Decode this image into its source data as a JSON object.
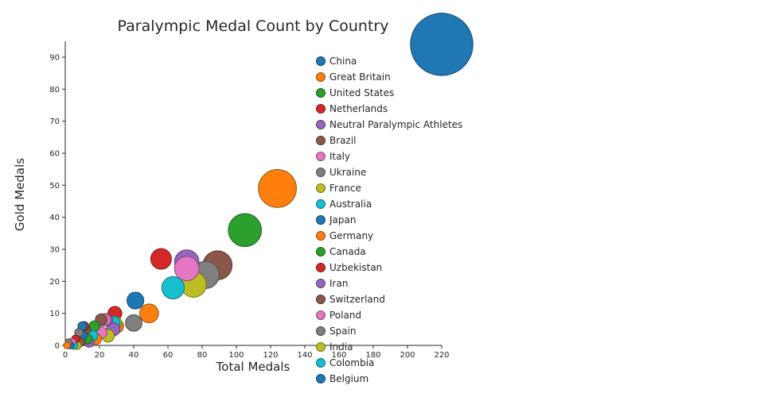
{
  "title": "Paralympic Medal Count by Country",
  "chart_data": {
    "type": "scatter",
    "subtype": "bubble",
    "title": "Paralympic Medal Count by Country",
    "x_label": "Total Medals",
    "y_label": "Gold Medals",
    "x_range": [
      0,
      220
    ],
    "y_range": [
      0,
      90
    ],
    "x_ticks": [
      0,
      20,
      40,
      60,
      80,
      100,
      120,
      140,
      160,
      180,
      200,
      220
    ],
    "y_ticks": [
      0,
      10,
      20,
      30,
      40,
      50,
      60,
      70,
      80,
      90
    ],
    "grid": false,
    "legend_position": "right-inside",
    "bubble_size": "proportional to total medals",
    "background_color": "#ffffff",
    "text_color": "#262626",
    "palette": [
      "#1f77b4",
      "#ff7f0e",
      "#2ca02c",
      "#d62728",
      "#9467bd",
      "#8c564b",
      "#e377c2",
      "#7f7f7f",
      "#bcbd22",
      "#17becf"
    ],
    "series": [
      {
        "name": "China",
        "total": 220,
        "gold": 94,
        "color": "#1f77b4"
      },
      {
        "name": "Great Britain",
        "total": 124,
        "gold": 49,
        "color": "#ff7f0e"
      },
      {
        "name": "United States",
        "total": 105,
        "gold": 36,
        "color": "#2ca02c"
      },
      {
        "name": "Netherlands",
        "total": 56,
        "gold": 27,
        "color": "#d62728"
      },
      {
        "name": "Neutral Paralympic Athletes",
        "total": 71,
        "gold": 26,
        "color": "#9467bd"
      },
      {
        "name": "Brazil",
        "total": 89,
        "gold": 25,
        "color": "#8c564b"
      },
      {
        "name": "Italy",
        "total": 71,
        "gold": 24,
        "color": "#e377c2"
      },
      {
        "name": "Ukraine",
        "total": 82,
        "gold": 22,
        "color": "#7f7f7f"
      },
      {
        "name": "France",
        "total": 75,
        "gold": 19,
        "color": "#bcbd22"
      },
      {
        "name": "Australia",
        "total": 63,
        "gold": 18,
        "color": "#17becf"
      },
      {
        "name": "Japan",
        "total": 41,
        "gold": 14,
        "color": "#1f77b4"
      },
      {
        "name": "Germany",
        "total": 49,
        "gold": 10,
        "color": "#ff7f0e"
      },
      {
        "name": "Canada",
        "total": 29,
        "gold": 10,
        "color": "#2ca02c"
      },
      {
        "name": "Uzbekistan",
        "total": 29,
        "gold": 10,
        "color": "#d62728"
      },
      {
        "name": "Iran",
        "total": 24,
        "gold": 8,
        "color": "#9467bd"
      },
      {
        "name": "Switzerland",
        "total": 21,
        "gold": 8,
        "color": "#8c564b"
      },
      {
        "name": "Poland",
        "total": 23,
        "gold": 8,
        "color": "#e377c2"
      },
      {
        "name": "Spain",
        "total": 40,
        "gold": 7,
        "color": "#7f7f7f"
      },
      {
        "name": "India",
        "total": 29,
        "gold": 7,
        "color": "#bcbd22"
      },
      {
        "name": "Colombia",
        "total": 28,
        "gold": 7,
        "color": "#17becf"
      },
      {
        "name": "Belgium",
        "total": 10,
        "gold": 6,
        "color": "#1f77b4"
      }
    ],
    "unlabeled_points": [
      {
        "total": 30,
        "gold": 6
      },
      {
        "total": 17,
        "gold": 6
      },
      {
        "total": 11,
        "gold": 6
      },
      {
        "total": 28,
        "gold": 5
      },
      {
        "total": 12,
        "gold": 5
      },
      {
        "total": 21,
        "gold": 4
      },
      {
        "total": 8,
        "gold": 4
      },
      {
        "total": 25,
        "gold": 3
      },
      {
        "total": 16,
        "gold": 3
      },
      {
        "total": 10,
        "gold": 3
      },
      {
        "total": 18,
        "gold": 2
      },
      {
        "total": 13,
        "gold": 2
      },
      {
        "total": 6,
        "gold": 2
      },
      {
        "total": 14,
        "gold": 1
      },
      {
        "total": 9,
        "gold": 1
      },
      {
        "total": 4,
        "gold": 1
      },
      {
        "total": 2,
        "gold": 1
      },
      {
        "total": 7,
        "gold": 0
      },
      {
        "total": 5,
        "gold": 0
      },
      {
        "total": 3,
        "gold": 0
      },
      {
        "total": 1,
        "gold": 0
      }
    ]
  }
}
